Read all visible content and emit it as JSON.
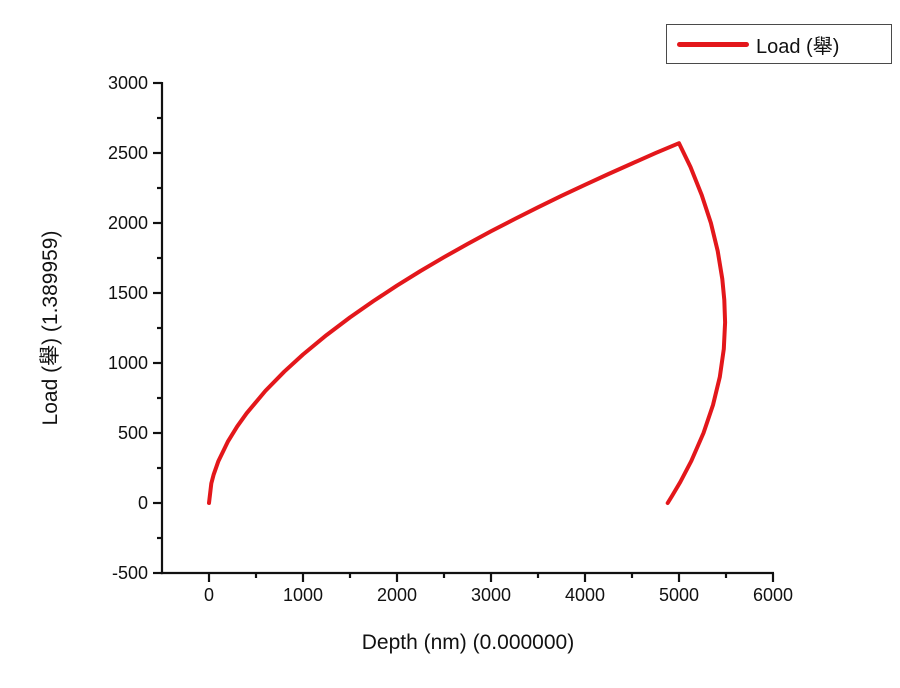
{
  "figure": {
    "background": "#ffffff"
  },
  "chart_data": {
    "type": "line",
    "title": "",
    "xlabel": "Depth (nm) (0.000000)",
    "ylabel": "Load (舉) (1.389959)",
    "x_range": [
      -500,
      6000
    ],
    "y_range": [
      -500,
      3000
    ],
    "x_major_ticks": [
      0,
      1000,
      2000,
      3000,
      4000,
      5000,
      6000
    ],
    "x_minor_ticks": [
      500,
      1500,
      2500,
      3500,
      4500,
      5500
    ],
    "y_major_ticks": [
      -500,
      0,
      500,
      1000,
      1500,
      2000,
      2500,
      3000
    ],
    "y_minor_ticks": [
      -250,
      250,
      750,
      1250,
      1750,
      2250,
      2750
    ],
    "grid": false,
    "tick_direction": "out",
    "axis_color": "#111111",
    "legend": {
      "position": "top-right",
      "label": "Load (舉)",
      "border_color": "#4a4a4a"
    },
    "series": [
      {
        "name": "Load (舉)",
        "color": "#e3171b",
        "line_width": 4,
        "peak_point": [
          5000,
          2570
        ],
        "max_depth_point": [
          5490,
          1290
        ],
        "residual_depth_point": [
          4880,
          0
        ],
        "segments": {
          "loading": [
            [
              0,
              0
            ],
            [
              25,
              139
            ],
            [
              50,
              204
            ],
            [
              100,
              299
            ],
            [
              200,
              438
            ],
            [
              300,
              547
            ],
            [
              400,
              641
            ],
            [
              600,
              801
            ],
            [
              800,
              938
            ],
            [
              1000,
              1061
            ],
            [
              1250,
              1199
            ],
            [
              1500,
              1326
            ],
            [
              1750,
              1443
            ],
            [
              2000,
              1553
            ],
            [
              2250,
              1657
            ],
            [
              2500,
              1756
            ],
            [
              2750,
              1850
            ],
            [
              3000,
              1941
            ],
            [
              3250,
              2028
            ],
            [
              3500,
              2112
            ],
            [
              3750,
              2194
            ],
            [
              4000,
              2273
            ],
            [
              4250,
              2350
            ],
            [
              4500,
              2425
            ],
            [
              4750,
              2499
            ],
            [
              5000,
              2570
            ]
          ],
          "unloading": [
            [
              5000,
              2570
            ],
            [
              5122,
              2400
            ],
            [
              5242,
              2200
            ],
            [
              5339,
              2000
            ],
            [
              5412,
              1800
            ],
            [
              5461,
              1600
            ],
            [
              5482,
              1450
            ],
            [
              5490,
              1290
            ],
            [
              5477,
              1100
            ],
            [
              5434,
              900
            ],
            [
              5362,
              700
            ],
            [
              5261,
              500
            ],
            [
              5131,
              300
            ],
            [
              5014,
              150
            ],
            [
              4926,
              50
            ],
            [
              4880,
              0
            ]
          ]
        }
      }
    ]
  }
}
